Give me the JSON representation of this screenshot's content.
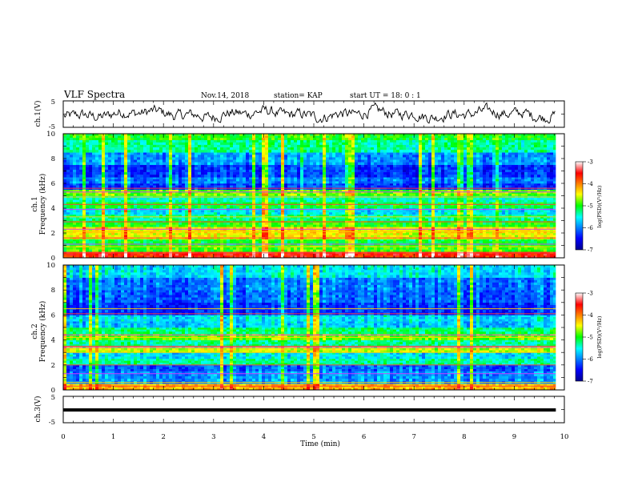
{
  "header": {
    "title": "VLF Spectra",
    "date": "Nov.14, 2018",
    "station": "station= KAP",
    "start_ut": "start UT =  18: 0  : 1"
  },
  "chart_data": [
    {
      "type": "line",
      "name": "ch1-waveform",
      "ylabel": "ch.1(V)",
      "ylim": [
        -5,
        5
      ],
      "yticks": [
        "5",
        "-5"
      ],
      "xlim": [
        0,
        10
      ],
      "x_end": 9.83,
      "trace_color": "#000000",
      "description_of_values": "dense noisy waveform, amplitude mostly between -2.5 and 2.5 V"
    },
    {
      "type": "heatmap",
      "name": "ch1-spectrogram",
      "ylabel": "ch.1\nFrequency (kHz)",
      "ylim": [
        0,
        10
      ],
      "yticks": [
        "0",
        "2",
        "4",
        "6",
        "8",
        "10"
      ],
      "xlim": [
        0,
        10
      ],
      "x_end": 9.83,
      "colorbar": {
        "label": "log(PSD)(V²/Hz)",
        "range": [
          -7,
          -3
        ],
        "ticks": [
          "-3",
          "-4",
          "-5",
          "-6",
          "-7"
        ]
      },
      "bands": [
        {
          "f": [
            0.0,
            0.5
          ],
          "v": -3.6
        },
        {
          "f": [
            0.5,
            1.0
          ],
          "v": -4.9
        },
        {
          "f": [
            1.0,
            1.5
          ],
          "v": -5.1
        },
        {
          "f": [
            1.5,
            2.0
          ],
          "v": -4.5
        },
        {
          "f": [
            2.0,
            2.5
          ],
          "v": -4.4
        },
        {
          "f": [
            2.5,
            3.0
          ],
          "v": -5.0
        },
        {
          "f": [
            3.0,
            3.5
          ],
          "v": -5.3
        },
        {
          "f": [
            3.5,
            4.0
          ],
          "v": -5.6
        },
        {
          "f": [
            4.0,
            4.5
          ],
          "v": -5.1
        },
        {
          "f": [
            4.5,
            5.0
          ],
          "v": -5.4
        },
        {
          "f": [
            5.0,
            5.5
          ],
          "v": -4.8
        },
        {
          "f": [
            5.5,
            6.0
          ],
          "v": -6.3
        },
        {
          "f": [
            6.0,
            6.5
          ],
          "v": -6.0
        },
        {
          "f": [
            6.5,
            7.5
          ],
          "v": -6.3
        },
        {
          "f": [
            7.5,
            8.5
          ],
          "v": -5.9
        },
        {
          "f": [
            8.5,
            9.5
          ],
          "v": -5.3
        },
        {
          "f": [
            9.5,
            10.0
          ],
          "v": -5.0
        }
      ],
      "lines_khz": [
        0.4,
        0.9,
        1.1,
        1.6,
        2.1,
        2.3,
        2.9,
        3.3,
        3.9,
        4.3,
        4.9,
        5.3,
        5.6
      ]
    },
    {
      "type": "heatmap",
      "name": "ch2-spectrogram",
      "ylabel": "ch.2\nFrequency (kHz)",
      "ylim": [
        0,
        10
      ],
      "yticks": [
        "0",
        "2",
        "4",
        "6",
        "8",
        "10"
      ],
      "xlim": [
        0,
        10
      ],
      "x_end": 9.83,
      "colorbar": {
        "label": "log(PSD)(V²/Hz)",
        "range": [
          -7,
          -3
        ],
        "ticks": [
          "-3",
          "-4",
          "-5",
          "-6",
          "-7"
        ]
      },
      "bands": [
        {
          "f": [
            0.0,
            0.5
          ],
          "v": -4.2
        },
        {
          "f": [
            0.5,
            1.5
          ],
          "v": -5.9
        },
        {
          "f": [
            1.5,
            2.0
          ],
          "v": -6.1
        },
        {
          "f": [
            2.0,
            2.5
          ],
          "v": -5.3
        },
        {
          "f": [
            2.5,
            3.0
          ],
          "v": -5.6
        },
        {
          "f": [
            3.0,
            3.5
          ],
          "v": -4.6
        },
        {
          "f": [
            3.5,
            4.0
          ],
          "v": -5.3
        },
        {
          "f": [
            4.0,
            4.5
          ],
          "v": -4.8
        },
        {
          "f": [
            4.5,
            5.0
          ],
          "v": -5.2
        },
        {
          "f": [
            5.0,
            5.5
          ],
          "v": -5.7
        },
        {
          "f": [
            5.5,
            6.0
          ],
          "v": -5.6
        },
        {
          "f": [
            6.0,
            7.0
          ],
          "v": -6.3
        },
        {
          "f": [
            7.0,
            8.0
          ],
          "v": -6.1
        },
        {
          "f": [
            8.0,
            9.0
          ],
          "v": -6.0
        },
        {
          "f": [
            9.0,
            10.0
          ],
          "v": -5.6
        }
      ],
      "lines_khz": [
        0.3,
        0.6,
        1.3,
        2.0,
        3.0,
        3.4,
        3.5,
        4.2,
        4.4,
        6.1,
        6.5
      ]
    },
    {
      "type": "line",
      "name": "ch3-waveform",
      "ylabel": "ch.3(V)",
      "ylim": [
        -5,
        5
      ],
      "yticks": [
        "5",
        "-5"
      ],
      "xlim": [
        0,
        10
      ],
      "x_end": 9.83,
      "constant_value": 0,
      "xlabel": "Time (min)",
      "xticks": [
        "0",
        "1",
        "2",
        "3",
        "4",
        "5",
        "6",
        "7",
        "8",
        "9",
        "10"
      ]
    }
  ]
}
